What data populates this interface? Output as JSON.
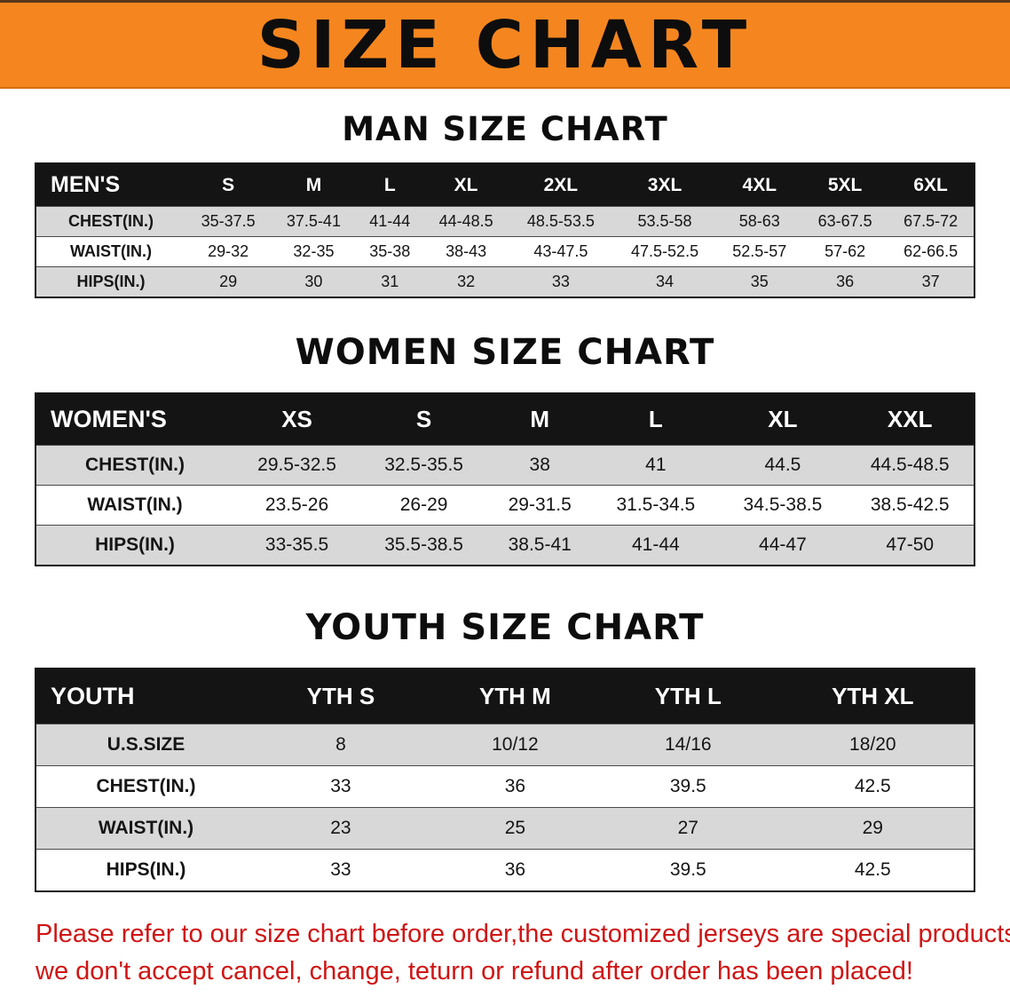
{
  "banner": {
    "title": "SIZE CHART"
  },
  "theme": {
    "banner_bg": "#f5861f",
    "table_header_bg": "#141414",
    "row_alt_bg": "#d8d8d8",
    "disclaimer_color": "#cf1515"
  },
  "sections": [
    {
      "id": "men",
      "heading": "MAN SIZE CHART",
      "corner_label": "MEN'S",
      "columns": [
        "S",
        "M",
        "L",
        "XL",
        "2XL",
        "3XL",
        "4XL",
        "5XL",
        "6XL"
      ],
      "rows": [
        {
          "label": "CHEST(IN.)",
          "values": [
            "35-37.5",
            "37.5-41",
            "41-44",
            "44-48.5",
            "48.5-53.5",
            "53.5-58",
            "58-63",
            "63-67.5",
            "67.5-72"
          ]
        },
        {
          "label": "WAIST(IN.)",
          "values": [
            "29-32",
            "32-35",
            "35-38",
            "38-43",
            "43-47.5",
            "47.5-52.5",
            "52.5-57",
            "57-62",
            "62-66.5"
          ]
        },
        {
          "label": "HIPS(IN.)",
          "values": [
            "29",
            "30",
            "31",
            "32",
            "33",
            "34",
            "35",
            "36",
            "37"
          ]
        }
      ]
    },
    {
      "id": "women",
      "heading": "WOMEN SIZE CHART",
      "corner_label": "WOMEN'S",
      "columns": [
        "XS",
        "S",
        "M",
        "L",
        "XL",
        "XXL"
      ],
      "rows": [
        {
          "label": "CHEST(IN.)",
          "values": [
            "29.5-32.5",
            "32.5-35.5",
            "38",
            "41",
            "44.5",
            "44.5-48.5"
          ]
        },
        {
          "label": "WAIST(IN.)",
          "values": [
            "23.5-26",
            "26-29",
            "29-31.5",
            "31.5-34.5",
            "34.5-38.5",
            "38.5-42.5"
          ]
        },
        {
          "label": "HIPS(IN.)",
          "values": [
            "33-35.5",
            "35.5-38.5",
            "38.5-41",
            "41-44",
            "44-47",
            "47-50"
          ]
        }
      ]
    },
    {
      "id": "youth",
      "heading": "YOUTH SIZE CHART",
      "corner_label": "YOUTH",
      "columns": [
        "YTH S",
        "YTH M",
        "YTH L",
        "YTH XL"
      ],
      "rows": [
        {
          "label": "U.S.SIZE",
          "values": [
            "8",
            "10/12",
            "14/16",
            "18/20"
          ]
        },
        {
          "label": "CHEST(IN.)",
          "values": [
            "33",
            "36",
            "39.5",
            "42.5"
          ]
        },
        {
          "label": "WAIST(IN.)",
          "values": [
            "23",
            "25",
            "27",
            "29"
          ]
        },
        {
          "label": "HIPS(IN.)",
          "values": [
            "33",
            "36",
            "39.5",
            "42.5"
          ]
        }
      ]
    }
  ],
  "disclaimer": {
    "line1": "Please refer to our size chart before order,the customized jerseys are special products,",
    "line2": "we don't accept cancel, change, teturn or refund after order has been placed!"
  }
}
